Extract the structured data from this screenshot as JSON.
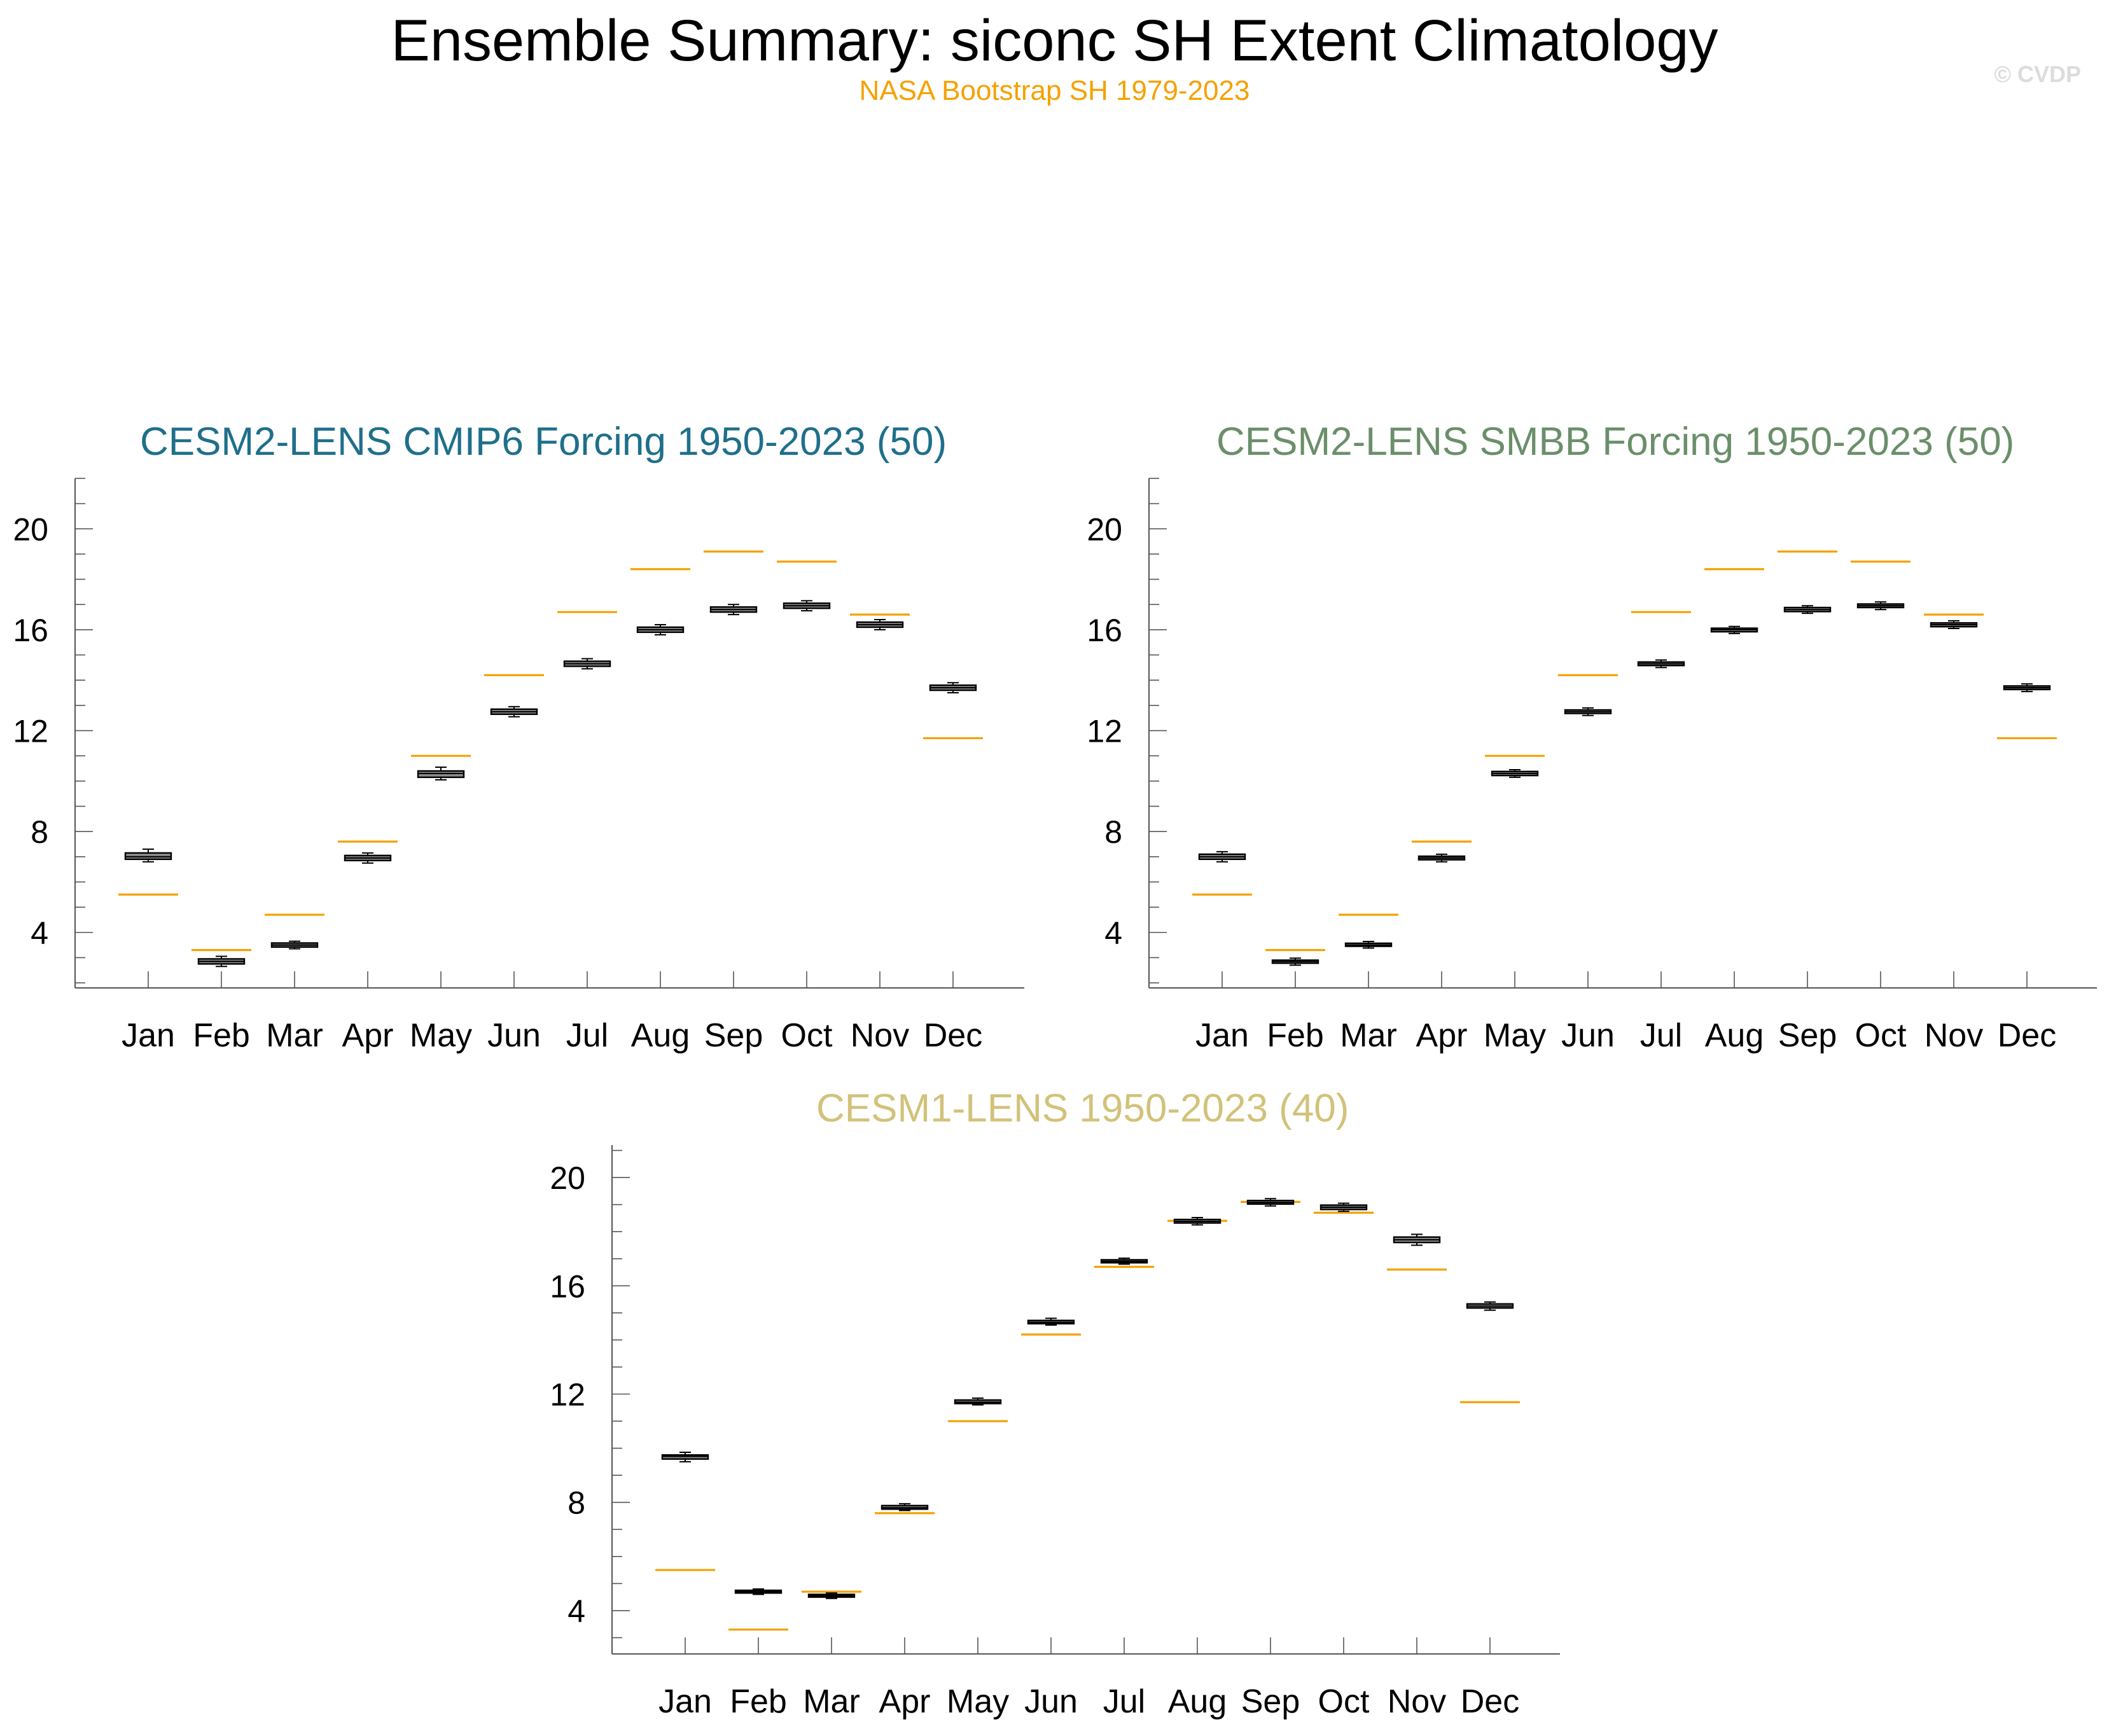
{
  "header": {
    "title": "Ensemble Summary: siconc SH Extent Climatology",
    "subtitle": "NASA Bootstrap SH 1979-2023",
    "watermark": "© CVDP"
  },
  "colors": {
    "observation_line": "#f5a100",
    "box_fill": "#8c8c8c",
    "axis": "#555555",
    "panel1_title": "#1f6f8b",
    "panel2_title": "#6a8f6a",
    "panel3_title": "#d2c27a"
  },
  "chart_data": [
    {
      "type": "box",
      "title": "CESM2-LENS CMIP6 Forcing 1950-2023 (50)",
      "categories": [
        "Jan",
        "Feb",
        "Mar",
        "Apr",
        "May",
        "Jun",
        "Jul",
        "Aug",
        "Sep",
        "Oct",
        "Nov",
        "Dec"
      ],
      "ylim": [
        1.8,
        22.0
      ],
      "yticks": [
        4,
        8,
        12,
        16,
        20
      ],
      "observation_name": "NASA Bootstrap SH 1979-2023",
      "observation": [
        5.5,
        3.3,
        4.7,
        7.6,
        11.0,
        14.2,
        16.7,
        18.4,
        19.1,
        18.7,
        16.6,
        11.7
      ],
      "boxes": [
        {
          "min": 6.8,
          "q1": 6.9,
          "median": 7.0,
          "q3": 7.15,
          "max": 7.3
        },
        {
          "min": 2.65,
          "q1": 2.75,
          "median": 2.85,
          "q3": 2.95,
          "max": 3.05
        },
        {
          "min": 3.35,
          "q1": 3.42,
          "median": 3.5,
          "q3": 3.58,
          "max": 3.65
        },
        {
          "min": 6.75,
          "q1": 6.85,
          "median": 6.95,
          "q3": 7.05,
          "max": 7.15
        },
        {
          "min": 10.05,
          "q1": 10.15,
          "median": 10.3,
          "q3": 10.4,
          "max": 10.55
        },
        {
          "min": 12.55,
          "q1": 12.65,
          "median": 12.75,
          "q3": 12.85,
          "max": 12.95
        },
        {
          "min": 14.45,
          "q1": 14.55,
          "median": 14.65,
          "q3": 14.75,
          "max": 14.85
        },
        {
          "min": 15.8,
          "q1": 15.9,
          "median": 16.0,
          "q3": 16.1,
          "max": 16.2
        },
        {
          "min": 16.6,
          "q1": 16.7,
          "median": 16.8,
          "q3": 16.9,
          "max": 17.0
        },
        {
          "min": 16.75,
          "q1": 16.85,
          "median": 16.95,
          "q3": 17.05,
          "max": 17.15
        },
        {
          "min": 16.0,
          "q1": 16.1,
          "median": 16.2,
          "q3": 16.3,
          "max": 16.4
        },
        {
          "min": 13.5,
          "q1": 13.6,
          "median": 13.7,
          "q3": 13.8,
          "max": 13.9
        }
      ]
    },
    {
      "type": "box",
      "title": "CESM2-LENS SMBB Forcing 1950-2023 (50)",
      "categories": [
        "Jan",
        "Feb",
        "Mar",
        "Apr",
        "May",
        "Jun",
        "Jul",
        "Aug",
        "Sep",
        "Oct",
        "Nov",
        "Dec"
      ],
      "ylim": [
        1.8,
        22.0
      ],
      "yticks": [
        4,
        8,
        12,
        16,
        20
      ],
      "observation_name": "NASA Bootstrap SH 1979-2023",
      "observation": [
        5.5,
        3.3,
        4.7,
        7.6,
        11.0,
        14.2,
        16.7,
        18.4,
        19.1,
        18.7,
        16.6,
        11.7
      ],
      "boxes": [
        {
          "min": 6.8,
          "q1": 6.9,
          "median": 7.0,
          "q3": 7.1,
          "max": 7.2
        },
        {
          "min": 2.7,
          "q1": 2.78,
          "median": 2.85,
          "q3": 2.9,
          "max": 2.98
        },
        {
          "min": 3.38,
          "q1": 3.45,
          "median": 3.5,
          "q3": 3.57,
          "max": 3.64
        },
        {
          "min": 6.8,
          "q1": 6.88,
          "median": 6.95,
          "q3": 7.02,
          "max": 7.1
        },
        {
          "min": 10.15,
          "q1": 10.22,
          "median": 10.3,
          "q3": 10.38,
          "max": 10.45
        },
        {
          "min": 12.6,
          "q1": 12.68,
          "median": 12.75,
          "q3": 12.82,
          "max": 12.9
        },
        {
          "min": 14.5,
          "q1": 14.58,
          "median": 14.65,
          "q3": 14.72,
          "max": 14.8
        },
        {
          "min": 15.85,
          "q1": 15.92,
          "median": 16.0,
          "q3": 16.06,
          "max": 16.13
        },
        {
          "min": 16.65,
          "q1": 16.72,
          "median": 16.8,
          "q3": 16.88,
          "max": 16.95
        },
        {
          "min": 16.8,
          "q1": 16.88,
          "median": 16.95,
          "q3": 17.02,
          "max": 17.1
        },
        {
          "min": 16.05,
          "q1": 16.12,
          "median": 16.2,
          "q3": 16.27,
          "max": 16.35
        },
        {
          "min": 13.55,
          "q1": 13.63,
          "median": 13.7,
          "q3": 13.77,
          "max": 13.85
        }
      ]
    },
    {
      "type": "box",
      "title": "CESM1-LENS 1950-2023 (40)",
      "categories": [
        "Jan",
        "Feb",
        "Mar",
        "Apr",
        "May",
        "Jun",
        "Jul",
        "Aug",
        "Sep",
        "Oct",
        "Nov",
        "Dec"
      ],
      "ylim": [
        2.4,
        21.2
      ],
      "yticks": [
        4,
        8,
        12,
        16,
        20
      ],
      "observation_name": "NASA Bootstrap SH 1979-2023",
      "observation": [
        5.5,
        3.3,
        4.7,
        7.6,
        11.0,
        14.2,
        16.7,
        18.4,
        19.1,
        18.7,
        16.6,
        11.7
      ],
      "boxes": [
        {
          "min": 9.5,
          "q1": 9.6,
          "median": 9.7,
          "q3": 9.75,
          "max": 9.85
        },
        {
          "min": 4.6,
          "q1": 4.65,
          "median": 4.7,
          "q3": 4.75,
          "max": 4.8
        },
        {
          "min": 4.45,
          "q1": 4.5,
          "median": 4.55,
          "q3": 4.6,
          "max": 4.65
        },
        {
          "min": 7.7,
          "q1": 7.75,
          "median": 7.8,
          "q3": 7.88,
          "max": 7.95
        },
        {
          "min": 11.6,
          "q1": 11.65,
          "median": 11.7,
          "q3": 11.78,
          "max": 11.85
        },
        {
          "min": 14.55,
          "q1": 14.6,
          "median": 14.65,
          "q3": 14.72,
          "max": 14.8
        },
        {
          "min": 16.8,
          "q1": 16.85,
          "median": 16.9,
          "q3": 16.96,
          "max": 17.02
        },
        {
          "min": 18.25,
          "q1": 18.32,
          "median": 18.38,
          "q3": 18.45,
          "max": 18.52
        },
        {
          "min": 18.95,
          "q1": 19.02,
          "median": 19.08,
          "q3": 19.15,
          "max": 19.22
        },
        {
          "min": 18.75,
          "q1": 18.82,
          "median": 18.9,
          "q3": 18.98,
          "max": 19.05
        },
        {
          "min": 17.5,
          "q1": 17.6,
          "median": 17.7,
          "q3": 17.8,
          "max": 17.9
        },
        {
          "min": 15.1,
          "q1": 15.18,
          "median": 15.25,
          "q3": 15.33,
          "max": 15.4
        }
      ]
    }
  ]
}
